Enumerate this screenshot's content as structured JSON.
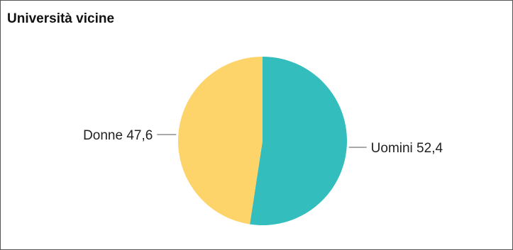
{
  "panel": {
    "title": "Università vicine"
  },
  "chart_data": {
    "type": "pie",
    "title": "Università vicine",
    "slices": [
      {
        "label": "Uomini",
        "value": 52.4,
        "value_text": "52,4",
        "color": "#33BDBD"
      },
      {
        "label": "Donne",
        "value": 47.6,
        "value_text": "47,6",
        "color": "#FDD46A"
      }
    ],
    "start": "top, clockwise",
    "leader_line_color": "#777777"
  }
}
